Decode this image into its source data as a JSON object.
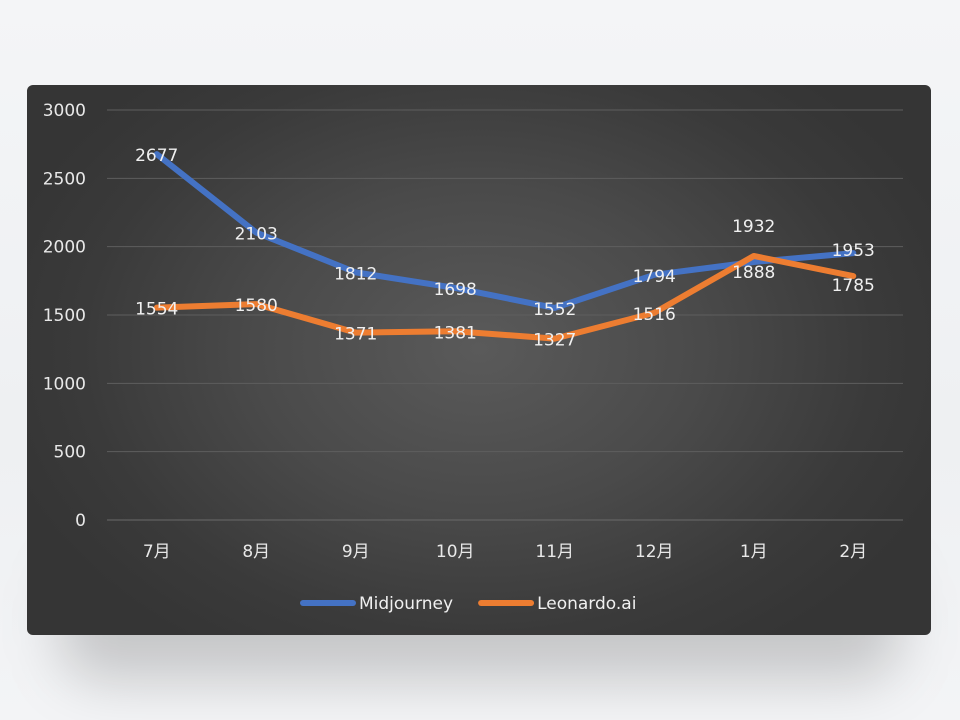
{
  "chart_data": {
    "type": "line",
    "categories": [
      "7月",
      "8月",
      "9月",
      "10月",
      "11月",
      "12月",
      "1月",
      "2月"
    ],
    "series": [
      {
        "name": "Midjourney",
        "values": [
          2677,
          2103,
          1812,
          1698,
          1552,
          1794,
          1888,
          1953
        ],
        "color": "#4472c4"
      },
      {
        "name": "Leonardo.ai",
        "values": [
          1554,
          1580,
          1371,
          1381,
          1327,
          1516,
          1932,
          1785
        ],
        "color": "#ed7d31"
      }
    ],
    "ylim": [
      0,
      3000
    ],
    "yticks": [
      0,
      500,
      1000,
      1500,
      2000,
      2500,
      3000
    ],
    "grid": true,
    "legend": "bottom",
    "title": "",
    "xlabel": "",
    "ylabel": ""
  }
}
